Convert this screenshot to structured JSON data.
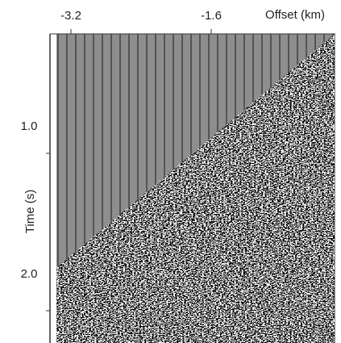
{
  "figure": {
    "x_axis": {
      "label": "Offset (km)",
      "ticks": [
        "-3.2",
        "-1.6"
      ]
    },
    "y_axis": {
      "label": "Time (s)",
      "ticks": [
        "1.0",
        "2.0"
      ]
    }
  }
}
